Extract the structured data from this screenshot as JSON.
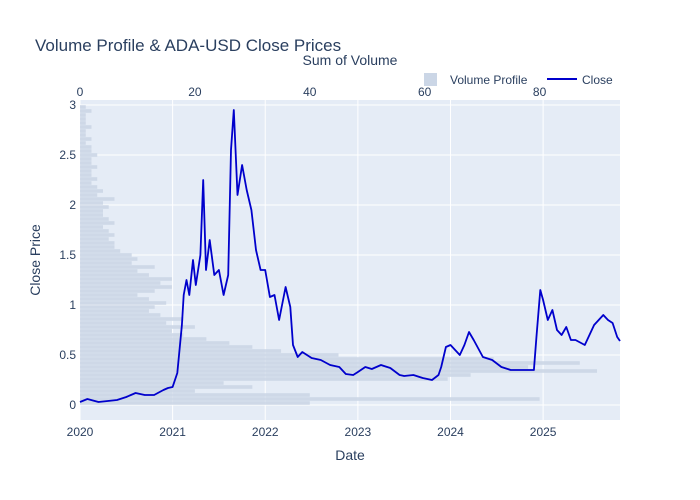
{
  "chart_data": {
    "type": "line",
    "title": "Volume Profile & ADA-USD Close Prices",
    "xlabel": "Date",
    "ylabel": "Close Price",
    "x2label": "Sum of Volume",
    "grid": true,
    "legend_position": "top-right",
    "legend": [
      {
        "label": "Volume Profile",
        "color": "#cbd6e6"
      },
      {
        "label": "Close",
        "color": "#0000cc"
      }
    ],
    "xlim": [
      2020.0,
      2025.83
    ],
    "ylim": [
      -0.15,
      3.05
    ],
    "x2lim": [
      0,
      94
    ],
    "x_ticks": [
      {
        "v": 2020,
        "label": "2020"
      },
      {
        "v": 2021,
        "label": "2021"
      },
      {
        "v": 2022,
        "label": "2022"
      },
      {
        "v": 2023,
        "label": "2023"
      },
      {
        "v": 2024,
        "label": "2024"
      },
      {
        "v": 2025,
        "label": "2025"
      }
    ],
    "y_ticks": [
      {
        "v": 0,
        "label": "0"
      },
      {
        "v": 0.5,
        "label": "0.5"
      },
      {
        "v": 1,
        "label": "1"
      },
      {
        "v": 1.5,
        "label": "1.5"
      },
      {
        "v": 2,
        "label": "2"
      },
      {
        "v": 2.5,
        "label": "2.5"
      },
      {
        "v": 3,
        "label": "3"
      }
    ],
    "x2_ticks": [
      {
        "v": 0,
        "label": "0"
      },
      {
        "v": 20,
        "label": "20"
      },
      {
        "v": 40,
        "label": "40"
      },
      {
        "v": 60,
        "label": "60"
      },
      {
        "v": 80,
        "label": "80"
      }
    ],
    "series": [
      {
        "name": "Close",
        "color": "#0000cc",
        "x": [
          2020.0,
          2020.08,
          2020.16,
          2020.2,
          2020.3,
          2020.4,
          2020.5,
          2020.55,
          2020.6,
          2020.7,
          2020.8,
          2020.9,
          2020.95,
          2021.0,
          2021.05,
          2021.1,
          2021.12,
          2021.15,
          2021.18,
          2021.22,
          2021.25,
          2021.3,
          2021.33,
          2021.36,
          2021.4,
          2021.45,
          2021.5,
          2021.55,
          2021.6,
          2021.63,
          2021.66,
          2021.7,
          2021.75,
          2021.8,
          2021.85,
          2021.9,
          2021.95,
          2022.0,
          2022.05,
          2022.1,
          2022.15,
          2022.22,
          2022.27,
          2022.3,
          2022.35,
          2022.4,
          2022.5,
          2022.6,
          2022.7,
          2022.8,
          2022.87,
          2022.95,
          2023.0,
          2023.08,
          2023.15,
          2023.25,
          2023.35,
          2023.45,
          2023.5,
          2023.6,
          2023.7,
          2023.8,
          2023.87,
          2023.9,
          2023.95,
          2024.0,
          2024.1,
          2024.15,
          2024.2,
          2024.25,
          2024.35,
          2024.45,
          2024.55,
          2024.65,
          2024.75,
          2024.85,
          2024.9,
          2024.93,
          2024.97,
          2025.0,
          2025.05,
          2025.1,
          2025.15,
          2025.2,
          2025.25,
          2025.3,
          2025.35,
          2025.45,
          2025.55,
          2025.6,
          2025.65,
          2025.7,
          2025.75,
          2025.8,
          2025.83
        ],
        "y": [
          0.03,
          0.06,
          0.04,
          0.03,
          0.04,
          0.05,
          0.08,
          0.1,
          0.12,
          0.1,
          0.1,
          0.15,
          0.17,
          0.18,
          0.32,
          0.8,
          1.1,
          1.25,
          1.1,
          1.45,
          1.2,
          1.5,
          2.25,
          1.35,
          1.65,
          1.3,
          1.35,
          1.1,
          1.3,
          2.55,
          2.95,
          2.1,
          2.4,
          2.15,
          1.95,
          1.55,
          1.35,
          1.35,
          1.08,
          1.1,
          0.85,
          1.18,
          0.98,
          0.6,
          0.48,
          0.53,
          0.47,
          0.45,
          0.4,
          0.38,
          0.31,
          0.3,
          0.33,
          0.38,
          0.36,
          0.4,
          0.37,
          0.3,
          0.29,
          0.3,
          0.27,
          0.25,
          0.3,
          0.38,
          0.58,
          0.6,
          0.5,
          0.6,
          0.73,
          0.65,
          0.48,
          0.45,
          0.38,
          0.35,
          0.35,
          0.35,
          0.35,
          0.7,
          1.15,
          1.05,
          0.85,
          0.95,
          0.75,
          0.7,
          0.78,
          0.65,
          0.65,
          0.6,
          0.8,
          0.85,
          0.9,
          0.85,
          0.82,
          0.68,
          0.64
        ]
      }
    ],
    "volume_profile": {
      "name": "Volume Profile",
      "color": "#cbd6e6",
      "price_bins": [
        0.02,
        0.06,
        0.1,
        0.14,
        0.18,
        0.22,
        0.26,
        0.3,
        0.34,
        0.38,
        0.42,
        0.46,
        0.5,
        0.54,
        0.58,
        0.62,
        0.66,
        0.7,
        0.74,
        0.78,
        0.82,
        0.86,
        0.9,
        0.94,
        0.98,
        1.02,
        1.06,
        1.1,
        1.14,
        1.18,
        1.22,
        1.26,
        1.3,
        1.34,
        1.38,
        1.42,
        1.46,
        1.5,
        1.54,
        1.58,
        1.62,
        1.66,
        1.7,
        1.74,
        1.78,
        1.82,
        1.86,
        1.9,
        1.94,
        1.98,
        2.02,
        2.06,
        2.1,
        2.14,
        2.18,
        2.22,
        2.26,
        2.3,
        2.34,
        2.38,
        2.42,
        2.46,
        2.5,
        2.54,
        2.58,
        2.62,
        2.66,
        2.7,
        2.74,
        2.78,
        2.82,
        2.86,
        2.9,
        2.94,
        2.98
      ],
      "volumes": [
        40,
        80,
        40,
        20,
        30,
        25,
        64,
        68,
        90,
        78,
        87,
        72,
        45,
        35,
        30,
        26,
        22,
        18,
        16,
        20,
        15,
        18,
        14,
        12,
        13,
        15,
        12,
        10,
        13,
        16,
        14,
        16,
        12,
        10,
        13,
        9,
        10,
        9,
        7,
        6,
        6,
        5,
        6,
        5,
        4,
        6,
        5,
        4,
        4,
        5,
        4,
        6,
        3,
        4,
        3,
        2,
        3,
        2,
        2,
        3,
        2,
        2,
        3,
        2,
        2,
        1,
        2,
        1,
        1,
        2,
        1,
        1,
        1,
        2,
        1
      ]
    }
  }
}
